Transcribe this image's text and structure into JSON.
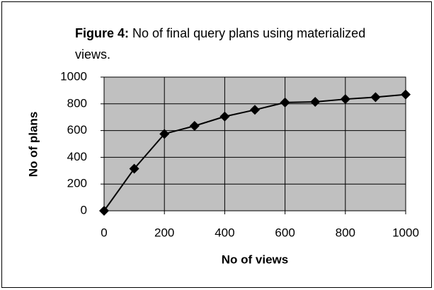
{
  "chart_data": {
    "type": "line",
    "title_label": "Figure 4:",
    "title": "No of final query plans using materialized views.",
    "x_label": "No of views",
    "y_label": "No of plans",
    "x": [
      0,
      100,
      200,
      300,
      400,
      500,
      600,
      700,
      800,
      900,
      1000
    ],
    "series": [
      {
        "color": "#000000",
        "values": [
          0,
          315,
          575,
          635,
          705,
          755,
          810,
          815,
          835,
          850,
          870
        ]
      }
    ],
    "xlim": [
      0,
      1000
    ],
    "xticks": [
      0,
      200,
      400,
      600,
      800,
      1000
    ],
    "ylim": [
      0,
      1000
    ],
    "yticks": [
      0,
      200,
      400,
      600,
      800,
      1000
    ],
    "grid": true,
    "plot_background": "#c0c0c0"
  }
}
